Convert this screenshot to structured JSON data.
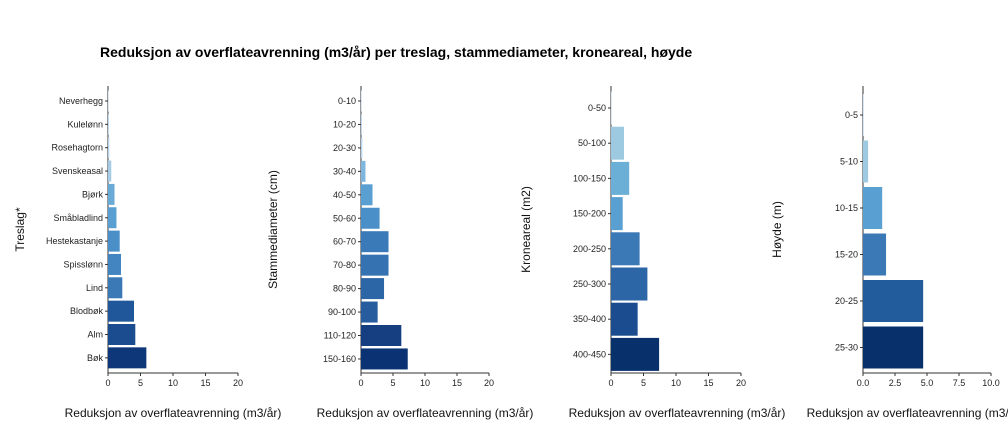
{
  "title": "Reduksjon av overflateavrenning (m3/år) per treslag, stammediameter, kroneareal, høyde",
  "chart_data": [
    {
      "type": "bar",
      "orientation": "horizontal",
      "ylabel": "Treslag*",
      "xlabel": "Reduksjon av overflateavrenning (m3/år)",
      "xlim": [
        0,
        20
      ],
      "xticks": [
        "0",
        "5",
        "10",
        "15",
        "20"
      ],
      "categories": [
        "Neverhegg",
        "Kuleløнn",
        "Rosehagtorn",
        "Svenskeasal",
        "Bjørk",
        "Småbladlind",
        "Hestekastanje",
        "Spisslønn",
        "Lind",
        "Blodbøk",
        "Alm",
        "Bøk"
      ],
      "values": [
        0.1,
        0.15,
        0.2,
        0.5,
        1.0,
        1.3,
        1.8,
        2.0,
        2.2,
        4.0,
        4.2,
        5.9
      ],
      "colors": [
        "#c6dbef",
        "#bdd7ee",
        "#b5d3ec",
        "#a6cbe7",
        "#6aaad7",
        "#5a9fd1",
        "#4a8fc7",
        "#4285c0",
        "#3a78b6",
        "#20569a",
        "#1a4c8f",
        "#0d3778"
      ]
    },
    {
      "type": "bar",
      "orientation": "horizontal",
      "ylabel": "Stammediameter (cm)",
      "xlabel": "Reduksjon av overflateavrenning (m3/år)",
      "xlim": [
        0,
        20
      ],
      "xticks": [
        "0",
        "5",
        "10",
        "15",
        "20"
      ],
      "categories": [
        "0-10",
        "10-20",
        "20-30",
        "30-40",
        "40-50",
        "50-60",
        "60-70",
        "70-80",
        "80-90",
        "90-100",
        "110-120",
        "150-160"
      ],
      "values": [
        0.1,
        0.15,
        0.2,
        0.7,
        1.8,
        2.9,
        4.3,
        4.3,
        3.6,
        2.6,
        6.3,
        7.3
      ],
      "colors": [
        "#c6dbef",
        "#bdd7ee",
        "#b5d3ec",
        "#7fb6dd",
        "#5a9fd1",
        "#4a8fc7",
        "#3b7ab8",
        "#3572b1",
        "#2d66a7",
        "#275d9f",
        "#153f81",
        "#0b3373"
      ]
    },
    {
      "type": "bar",
      "orientation": "horizontal",
      "ylabel": "Kroneareal (m2)",
      "xlabel": "Reduksjon av overflateavrenning (m3/år)",
      "xlim": [
        0,
        20
      ],
      "xticks": [
        "0",
        "5",
        "10",
        "15",
        "20"
      ],
      "categories": [
        "0-50",
        "50-100",
        "100-150",
        "150-200",
        "200-250",
        "250-300",
        "350-400",
        "400-450"
      ],
      "values": [
        0.1,
        2.0,
        2.8,
        1.8,
        4.4,
        5.6,
        4.1,
        7.4
      ],
      "colors": [
        "#c6dbef",
        "#9ecae1",
        "#6baed6",
        "#5a9fd1",
        "#3a78b6",
        "#2d66a7",
        "#1a4c8f",
        "#08306b"
      ]
    },
    {
      "type": "bar",
      "orientation": "horizontal",
      "ylabel": "Høyde (m)",
      "xlabel": "Reduksjon av overflateavrenning (m3/år)",
      "xlim": [
        0,
        10
      ],
      "xticks": [
        "0.0",
        "2.5",
        "5.0",
        "7.5",
        "10.0"
      ],
      "categories": [
        "0-5",
        "5-10",
        "10-15",
        "15-20",
        "20-25",
        "25-30"
      ],
      "values": [
        0.05,
        0.4,
        1.5,
        1.8,
        4.7,
        4.7
      ],
      "colors": [
        "#c6dbef",
        "#9ecae1",
        "#5a9fd1",
        "#3a78b6",
        "#235c9c",
        "#08306b"
      ]
    }
  ]
}
